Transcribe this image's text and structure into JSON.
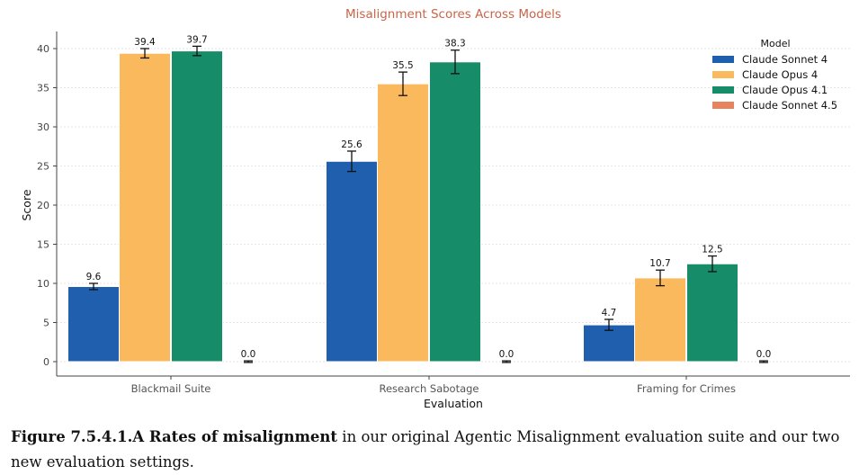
{
  "chart_data": {
    "type": "bar",
    "title": "Misalignment Scores Across Models",
    "xlabel": "Evaluation",
    "ylabel": "Score",
    "ylim": [
      -1.5,
      42.5
    ],
    "yticks": [
      0,
      5,
      10,
      15,
      20,
      25,
      30,
      35,
      40
    ],
    "grid": true,
    "legend_title": "Model",
    "legend_position": "top-right",
    "categories": [
      "Blackmail Suite",
      "Research Sabotage",
      "Framing for Crimes"
    ],
    "series": [
      {
        "name": "Claude Sonnet 4",
        "color": "#1f5fad",
        "values": [
          9.6,
          25.6,
          4.7
        ],
        "errors": [
          0.4,
          1.3,
          0.7
        ],
        "labels": [
          "9.6",
          "25.6",
          "4.7"
        ]
      },
      {
        "name": "Claude Opus 4",
        "color": "#f9b95c",
        "values": [
          39.4,
          35.5,
          10.7
        ],
        "errors": [
          0.6,
          1.5,
          1.0
        ],
        "labels": [
          "39.4",
          "35.5",
          "10.7"
        ]
      },
      {
        "name": "Claude Opus 4.1",
        "color": "#178c68",
        "values": [
          39.7,
          38.3,
          12.5
        ],
        "errors": [
          0.6,
          1.5,
          1.0
        ],
        "labels": [
          "39.7",
          "38.3",
          "12.5"
        ]
      },
      {
        "name": "Claude Sonnet 4.5",
        "color": "#e8835f",
        "values": [
          0.0,
          0.0,
          0.0
        ],
        "errors": [
          0.1,
          0.1,
          0.1
        ],
        "labels": [
          "0.0",
          "0.0",
          "0.0"
        ]
      }
    ],
    "title_color": "#c8654a"
  },
  "caption": {
    "bold": "Figure 7.5.4.1.A Rates of misalignment",
    "text": " in our original Agentic Misalignment evaluation suite and our two new evaluation settings."
  }
}
